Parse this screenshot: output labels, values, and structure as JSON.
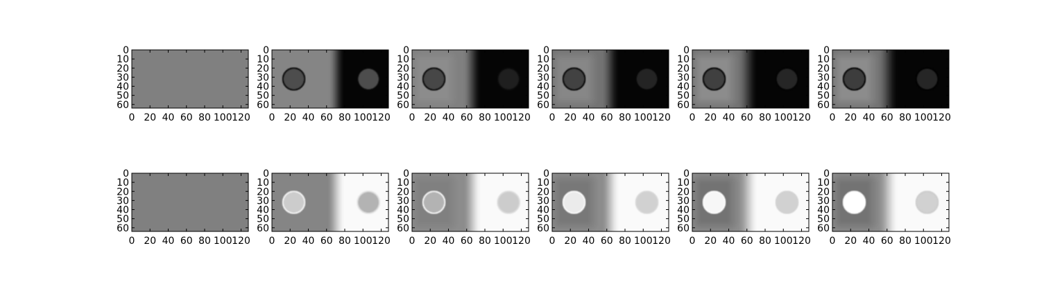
{
  "chart_data": {
    "type": "heatmap",
    "layout": {
      "rows": 2,
      "cols": 6
    },
    "colormap": "gray",
    "xlim": [
      0,
      128
    ],
    "ylim": [
      64,
      0
    ],
    "xticks": [
      0,
      20,
      40,
      60,
      80,
      100,
      120
    ],
    "yticks": [
      0,
      10,
      20,
      30,
      40,
      50,
      60
    ],
    "grid": false,
    "panels": [
      {
        "row": 0,
        "col": 0,
        "kind": "uniform",
        "base": 0.5
      },
      {
        "row": 0,
        "col": 1,
        "kind": "dark_fade",
        "base": 0.52,
        "fade_start": 62,
        "fade_end": 80,
        "right_base": 0.02,
        "c1": [
          24,
          32
        ],
        "c2": [
          106,
          32
        ],
        "r": 12,
        "d1": 0.3,
        "d2": 0.3,
        "ring1": 0.02,
        "ring2": 0.03,
        "halo": 0.0
      },
      {
        "row": 0,
        "col": 2,
        "kind": "dark_fade",
        "base": 0.5,
        "fade_start": 56,
        "fade_end": 76,
        "right_base": 0.02,
        "c1": [
          24,
          32
        ],
        "c2": [
          106,
          32
        ],
        "r": 12,
        "d1": 0.28,
        "d2": 0.12,
        "ring1": 0.02,
        "ring2": 0.04,
        "halo": 0.05
      },
      {
        "row": 0,
        "col": 3,
        "kind": "dark_fade",
        "base": 0.45,
        "fade_start": 54,
        "fade_end": 74,
        "right_base": 0.02,
        "c1": [
          24,
          32
        ],
        "c2": [
          104,
          32
        ],
        "r": 12,
        "d1": 0.26,
        "d2": 0.14,
        "ring1": 0.01,
        "ring2": 0.02,
        "halo": 0.08
      },
      {
        "row": 0,
        "col": 4,
        "kind": "dark_fade",
        "base": 0.45,
        "fade_start": 50,
        "fade_end": 72,
        "right_base": 0.02,
        "c1": [
          24,
          32
        ],
        "c2": [
          104,
          32
        ],
        "r": 12,
        "d1": 0.25,
        "d2": 0.15,
        "ring1": 0.0,
        "ring2": 0.01,
        "halo": 0.1
      },
      {
        "row": 0,
        "col": 5,
        "kind": "dark_fade",
        "base": 0.45,
        "fade_start": 50,
        "fade_end": 72,
        "right_base": 0.02,
        "c1": [
          24,
          32
        ],
        "c2": [
          104,
          32
        ],
        "r": 12,
        "d1": 0.24,
        "d2": 0.15,
        "ring1": 0.0,
        "ring2": 0.0,
        "halo": 0.1
      },
      {
        "row": 1,
        "col": 0,
        "kind": "uniform",
        "base": 0.5
      },
      {
        "row": 1,
        "col": 1,
        "kind": "light_fade",
        "base": 0.52,
        "fade_start": 60,
        "fade_end": 80,
        "right_base": 0.98,
        "c1": [
          24,
          32
        ],
        "c2": [
          106,
          32
        ],
        "r": 12,
        "d1": 0.8,
        "d2": 0.7,
        "ring1": 0.98,
        "ring2": 0.88,
        "halo": 0.0
      },
      {
        "row": 1,
        "col": 2,
        "kind": "light_fade",
        "base": 0.55,
        "fade_start": 56,
        "fade_end": 76,
        "right_base": 0.98,
        "c1": [
          24,
          32
        ],
        "c2": [
          106,
          32
        ],
        "r": 12,
        "d1": 0.7,
        "d2": 0.8,
        "ring1": 1.0,
        "ring2": 0.86,
        "halo": 0.05
      },
      {
        "row": 1,
        "col": 3,
        "kind": "light_fade",
        "base": 0.55,
        "fade_start": 54,
        "fade_end": 74,
        "right_base": 0.98,
        "c1": [
          24,
          32
        ],
        "c2": [
          104,
          32
        ],
        "r": 12,
        "d1": 0.92,
        "d2": 0.82,
        "ring1": 1.0,
        "ring2": 0.84,
        "halo": 0.08
      },
      {
        "row": 1,
        "col": 4,
        "kind": "light_fade",
        "base": 0.55,
        "fade_start": 50,
        "fade_end": 72,
        "right_base": 0.98,
        "c1": [
          24,
          32
        ],
        "c2": [
          104,
          32
        ],
        "r": 12,
        "d1": 0.97,
        "d2": 0.82,
        "ring1": 1.0,
        "ring2": 0.82,
        "halo": 0.1
      },
      {
        "row": 1,
        "col": 5,
        "kind": "light_fade",
        "base": 0.55,
        "fade_start": 50,
        "fade_end": 72,
        "right_base": 0.98,
        "c1": [
          24,
          32
        ],
        "c2": [
          104,
          32
        ],
        "r": 12,
        "d1": 1.0,
        "d2": 0.82,
        "ring1": 1.0,
        "ring2": 0.8,
        "halo": 0.1
      }
    ]
  }
}
